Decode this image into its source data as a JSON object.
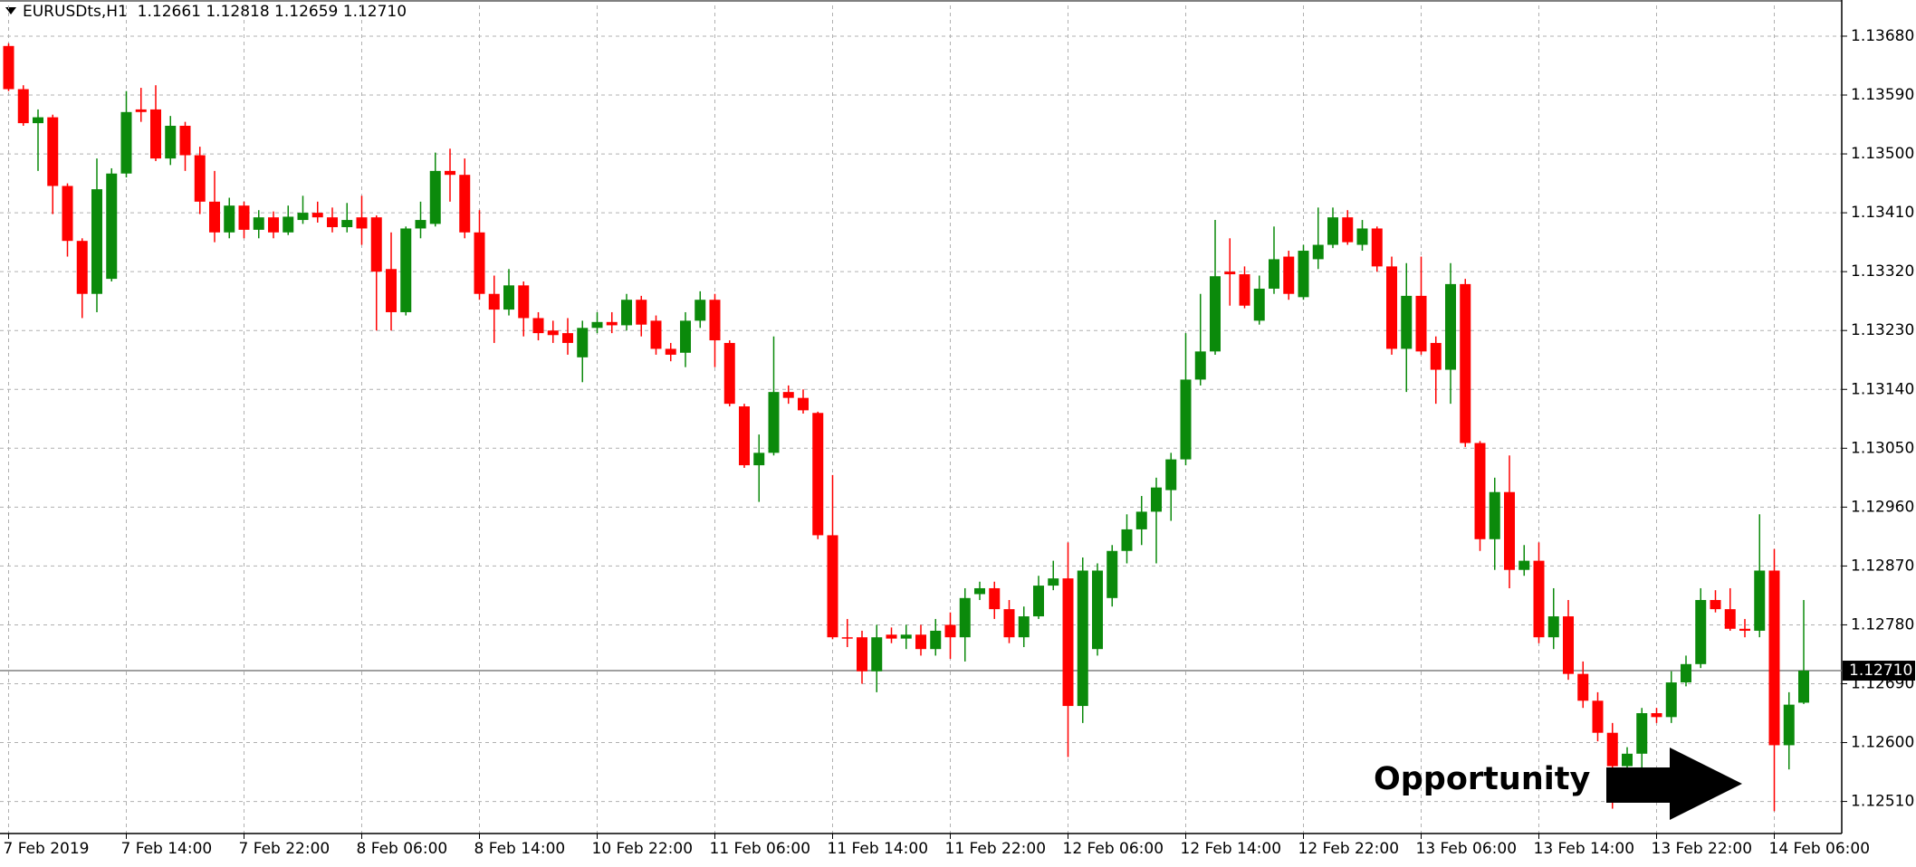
{
  "chart_data": {
    "type": "candlestick",
    "title": "EURUSDts,H1  1.12661 1.12818 1.12659 1.12710",
    "categories": [
      "7 Feb 2019",
      null,
      null,
      null,
      null,
      null,
      null,
      null,
      "7 Feb 14:00",
      null,
      null,
      null,
      null,
      null,
      null,
      null,
      "7 Feb 22:00",
      null,
      null,
      null,
      null,
      null,
      null,
      null,
      "8 Feb 06:00",
      null,
      null,
      null,
      null,
      null,
      null,
      null,
      "8 Feb 14:00",
      null,
      null,
      null,
      null,
      null,
      null,
      null,
      "10 Feb 22:00",
      null,
      null,
      null,
      null,
      null,
      null,
      null,
      "11 Feb 06:00",
      null,
      null,
      null,
      null,
      null,
      null,
      null,
      "11 Feb 14:00",
      null,
      null,
      null,
      null,
      null,
      null,
      null,
      "11 Feb 22:00",
      null,
      null,
      null,
      null,
      null,
      null,
      null,
      "12 Feb 06:00",
      null,
      null,
      null,
      null,
      null,
      null,
      null,
      "12 Feb 14:00",
      null,
      null,
      null,
      null,
      null,
      null,
      null,
      "12 Feb 22:00",
      null,
      null,
      null,
      null,
      null,
      null,
      null,
      "13 Feb 06:00",
      null,
      null,
      null,
      null,
      null,
      null,
      null,
      "13 Feb 14:00",
      null,
      null,
      null,
      null,
      null,
      null,
      null,
      "13 Feb 22:00",
      null,
      null,
      null,
      null,
      null,
      null,
      null,
      "14 Feb 06:00",
      null,
      null
    ],
    "open": [
      1.13665,
      1.13599,
      1.13547,
      1.13556,
      1.13451,
      1.13367,
      1.13286,
      1.13309,
      1.1347,
      1.13568,
      1.13568,
      1.13493,
      1.13543,
      1.13498,
      1.13427,
      1.1338,
      1.13421,
      1.13384,
      1.13403,
      1.1338,
      1.13399,
      1.1341,
      1.13403,
      1.13388,
      1.13403,
      1.13403,
      1.13324,
      1.13258,
      1.13386,
      1.13393,
      1.13474,
      1.13468,
      1.1338,
      1.13286,
      1.13262,
      1.13299,
      1.13249,
      1.1323,
      1.13226,
      1.13189,
      1.13234,
      1.13243,
      1.13238,
      1.13277,
      1.13245,
      1.13202,
      1.13196,
      1.13245,
      1.13277,
      1.13211,
      1.13114,
      1.13024,
      1.13043,
      1.13136,
      1.13127,
      1.13104,
      1.12917,
      1.12761,
      1.12761,
      1.12709,
      1.12765,
      1.12759,
      1.12765,
      1.12743,
      1.1278,
      1.12761,
      1.12827,
      1.12836,
      1.12804,
      1.12761,
      1.12793,
      1.1284,
      1.12851,
      1.12656,
      1.12743,
      1.12821,
      1.12893,
      1.12926,
      1.12953,
      1.12986,
      1.13033,
      1.13155,
      1.13198,
      1.1332,
      1.13316,
      1.13245,
      1.13294,
      1.13343,
      1.13281,
      1.13339,
      1.13361,
      1.13403,
      1.13361,
      1.13386,
      1.13328,
      1.13202,
      1.13283,
      1.13211,
      1.1317,
      1.13301,
      1.13058,
      1.12911,
      1.12983,
      1.12864,
      1.12878,
      1.12761,
      1.12793,
      1.12705,
      1.12664,
      1.12615,
      1.12564,
      1.12583,
      1.12645,
      1.12639,
      1.12692,
      1.1272,
      1.12818,
      1.12804,
      1.12774,
      1.12771,
      1.12863,
      1.12596,
      1.12661
    ],
    "high": [
      1.13669,
      1.13605,
      1.13568,
      1.1356,
      1.13455,
      1.13371,
      1.13493,
      1.13478,
      1.13596,
      1.13601,
      1.13605,
      1.13558,
      1.13549,
      1.13511,
      1.13474,
      1.13433,
      1.13427,
      1.13414,
      1.13412,
      1.13421,
      1.13436,
      1.13427,
      1.13418,
      1.13425,
      1.13436,
      1.13406,
      1.1338,
      1.13389,
      1.13427,
      1.13502,
      1.13508,
      1.13493,
      1.13414,
      1.13314,
      1.13324,
      1.13305,
      1.13258,
      1.13245,
      1.13249,
      1.13245,
      1.13258,
      1.13258,
      1.13286,
      1.13283,
      1.13253,
      1.13211,
      1.13258,
      1.1329,
      1.13286,
      1.13215,
      1.13118,
      1.13071,
      1.13221,
      1.13146,
      1.1314,
      1.13106,
      1.13009,
      1.12789,
      1.12771,
      1.1278,
      1.12776,
      1.1278,
      1.1278,
      1.12789,
      1.12799,
      1.12836,
      1.12846,
      1.12846,
      1.12818,
      1.12808,
      1.12855,
      1.12878,
      1.12906,
      1.12883,
      1.12874,
      1.12902,
      1.12949,
      1.12977,
      1.13005,
      1.13043,
      1.13226,
      1.13286,
      1.13399,
      1.13371,
      1.13328,
      1.13314,
      1.13389,
      1.13352,
      1.13361,
      1.13418,
      1.13418,
      1.13414,
      1.13399,
      1.13389,
      1.13343,
      1.13333,
      1.13343,
      1.13221,
      1.13333,
      1.13309,
      1.13061,
      1.13005,
      1.13039,
      1.12902,
      1.12906,
      1.12836,
      1.12818,
      1.12724,
      1.12677,
      1.1263,
      1.12593,
      1.12653,
      1.12653,
      1.12709,
      1.12733,
      1.12836,
      1.12833,
      1.12836,
      1.12789,
      1.12949,
      1.12896,
      1.12677,
      1.12818
    ],
    "low": [
      1.13596,
      1.13543,
      1.13474,
      1.13408,
      1.13343,
      1.13249,
      1.13258,
      1.13305,
      1.13464,
      1.13549,
      1.13489,
      1.13483,
      1.13474,
      1.13408,
      1.13365,
      1.13371,
      1.13371,
      1.13371,
      1.13371,
      1.13376,
      1.13393,
      1.13395,
      1.1338,
      1.1338,
      1.13361,
      1.1323,
      1.1323,
      1.13253,
      1.13371,
      1.13389,
      1.13427,
      1.13371,
      1.13277,
      1.13211,
      1.13253,
      1.13221,
      1.13215,
      1.13211,
      1.13193,
      1.13151,
      1.13226,
      1.13226,
      1.1323,
      1.13221,
      1.13193,
      1.13183,
      1.13174,
      1.13234,
      1.13174,
      1.13114,
      1.1302,
      1.12968,
      1.13039,
      1.13118,
      1.13103,
      1.12911,
      1.12758,
      1.12746,
      1.1269,
      1.12677,
      1.12752,
      1.12743,
      1.12733,
      1.12733,
      1.12728,
      1.12724,
      1.12818,
      1.12789,
      1.12752,
      1.12746,
      1.12789,
      1.12833,
      1.12578,
      1.1263,
      1.12733,
      1.12808,
      1.12874,
      1.12902,
      1.12874,
      1.12939,
      1.13024,
      1.13146,
      1.13193,
      1.13268,
      1.13264,
      1.13239,
      1.13286,
      1.13277,
      1.13277,
      1.13324,
      1.13356,
      1.13361,
      1.13352,
      1.1332,
      1.13193,
      1.13136,
      1.13193,
      1.13118,
      1.13118,
      1.13052,
      1.12893,
      1.12864,
      1.12836,
      1.12855,
      1.12752,
      1.12743,
      1.12696,
      1.12653,
      1.12602,
      1.12499,
      1.12536,
      1.12555,
      1.1263,
      1.1263,
      1.12686,
      1.12714,
      1.12799,
      1.12771,
      1.12761,
      1.12761,
      1.12495,
      1.12559,
      1.12659
    ],
    "close": [
      1.13599,
      1.13547,
      1.13556,
      1.13451,
      1.13367,
      1.13286,
      1.13446,
      1.1347,
      1.13564,
      1.13564,
      1.13493,
      1.13543,
      1.13498,
      1.13427,
      1.1338,
      1.13421,
      1.13384,
      1.13403,
      1.1338,
      1.13404,
      1.1341,
      1.13403,
      1.13388,
      1.13399,
      1.13386,
      1.1332,
      1.13258,
      1.13386,
      1.13399,
      1.13474,
      1.13468,
      1.1338,
      1.13286,
      1.13262,
      1.13299,
      1.13249,
      1.13226,
      1.13223,
      1.13211,
      1.13234,
      1.13243,
      1.13238,
      1.13277,
      1.13239,
      1.13202,
      1.13193,
      1.13245,
      1.13277,
      1.13215,
      1.13118,
      1.13024,
      1.13043,
      1.13136,
      1.13127,
      1.13108,
      1.12917,
      1.12761,
      1.12759,
      1.12709,
      1.12761,
      1.12759,
      1.12765,
      1.12743,
      1.12771,
      1.12761,
      1.12821,
      1.12836,
      1.12804,
      1.12761,
      1.12793,
      1.1284,
      1.12851,
      1.12656,
      1.12863,
      1.12863,
      1.12893,
      1.12926,
      1.12953,
      1.1299,
      1.13033,
      1.13155,
      1.13198,
      1.13313,
      1.13316,
      1.13268,
      1.13294,
      1.13339,
      1.13286,
      1.13352,
      1.13361,
      1.13403,
      1.13365,
      1.13386,
      1.13328,
      1.13202,
      1.13283,
      1.13198,
      1.1317,
      1.13301,
      1.13058,
      1.12911,
      1.12983,
      1.12864,
      1.12878,
      1.12761,
      1.12793,
      1.12705,
      1.12664,
      1.12615,
      1.12564,
      1.12583,
      1.12645,
      1.12639,
      1.12692,
      1.1272,
      1.12818,
      1.12804,
      1.12774,
      1.12771,
      1.12863,
      1.12596,
      1.12658,
      1.1271
    ],
    "up_color": "#0b8a0b",
    "down_color": "#ff0000",
    "ylim": [
      1.12461,
      1.13727
    ],
    "yticks": [
      {
        "value": 1.1251,
        "label": "1.12510"
      },
      {
        "value": 1.126,
        "label": "1.12600"
      },
      {
        "value": 1.1269,
        "label": "1.12690"
      },
      {
        "value": 1.1278,
        "label": "1.12780"
      },
      {
        "value": 1.1287,
        "label": "1.12870"
      },
      {
        "value": 1.1296,
        "label": "1.12960"
      },
      {
        "value": 1.1305,
        "label": "1.13050"
      },
      {
        "value": 1.1314,
        "label": "1.13140"
      },
      {
        "value": 1.1323,
        "label": "1.13230"
      },
      {
        "value": 1.1332,
        "label": "1.13320"
      },
      {
        "value": 1.1341,
        "label": "1.13410"
      },
      {
        "value": 1.135,
        "label": "1.13500"
      },
      {
        "value": 1.1359,
        "label": "1.13590"
      },
      {
        "value": 1.1368,
        "label": "1.13680"
      }
    ],
    "price_line": {
      "value": 1.1271,
      "label": "1.12710"
    },
    "annotation": "Opportunity",
    "grid": true
  }
}
